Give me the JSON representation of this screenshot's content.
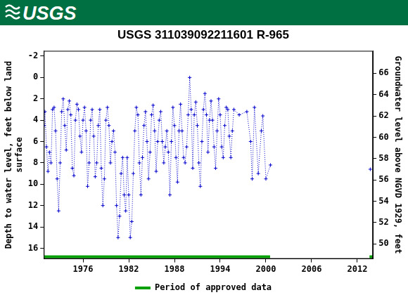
{
  "header": {
    "text": "USGS",
    "color": "#006f41"
  },
  "chart_data": {
    "type": "line",
    "title": "USGS 311039092211601 R-965",
    "ylabel": [
      "Depth to water level, feet below land",
      "surface"
    ],
    "y2label": "Groundwater level above NGVD 1929, feet",
    "x": [
      1970.9,
      1971.0,
      1971.2,
      1971.4,
      1971.6,
      1971.8,
      1972.0,
      1972.2,
      1972.4,
      1972.6,
      1972.8,
      1973.0,
      1973.2,
      1973.4,
      1973.6,
      1973.8,
      1974.0,
      1974.2,
      1974.4,
      1974.6,
      1974.8,
      1975.0,
      1975.2,
      1975.4,
      1975.6,
      1975.8,
      1976.0,
      1976.2,
      1976.4,
      1976.6,
      1976.8,
      1977.0,
      1977.2,
      1977.4,
      1977.6,
      1977.8,
      1978.0,
      1978.2,
      1978.4,
      1978.6,
      1978.8,
      1979.0,
      1979.2,
      1979.4,
      1979.6,
      1979.8,
      1980.0,
      1980.2,
      1980.4,
      1980.6,
      1980.8,
      1981.0,
      1981.2,
      1981.4,
      1981.6,
      1981.8,
      1982.0,
      1982.2,
      1982.4,
      1982.6,
      1982.8,
      1983.0,
      1983.2,
      1983.4,
      1983.6,
      1983.8,
      1984.0,
      1984.2,
      1984.4,
      1984.6,
      1984.8,
      1985.0,
      1985.2,
      1985.4,
      1985.6,
      1985.8,
      1986.0,
      1986.2,
      1986.4,
      1986.6,
      1986.8,
      1987.0,
      1987.2,
      1987.4,
      1987.6,
      1987.8,
      1988.0,
      1988.2,
      1988.4,
      1988.6,
      1988.8,
      1989.0,
      1989.2,
      1989.4,
      1989.6,
      1989.8,
      1990.0,
      1990.2,
      1990.4,
      1990.6,
      1990.8,
      1991.0,
      1991.2,
      1991.4,
      1991.6,
      1991.8,
      1992.0,
      1992.2,
      1992.4,
      1992.6,
      1992.8,
      1993.0,
      1993.2,
      1993.4,
      1993.6,
      1993.8,
      1994.0,
      1994.2,
      1994.4,
      1994.6,
      1994.8,
      1995.0,
      1995.2,
      1995.4,
      1995.6,
      1995.8,
      1996.5,
      1997.5,
      1998.0,
      1998.2,
      1998.5,
      1999.0,
      1999.4,
      1999.6,
      2000.0,
      2000.6,
      2007.0,
      2013.7
    ],
    "values": [
      4.5,
      3.2,
      6.5,
      8.8,
      7.0,
      8.0,
      3.0,
      2.8,
      5.0,
      9.5,
      12.5,
      8.0,
      3.2,
      2.0,
      4.5,
      6.8,
      3.0,
      2.2,
      3.5,
      8.5,
      9.2,
      4.0,
      2.5,
      3.0,
      5.5,
      7.0,
      4.0,
      2.8,
      5.0,
      10.2,
      8.0,
      4.0,
      3.0,
      5.5,
      9.3,
      8.0,
      4.5,
      3.0,
      8.5,
      12.0,
      9.5,
      4.0,
      2.8,
      4.5,
      8.0,
      6.0,
      5.0,
      7.0,
      12.0,
      15.0,
      13.0,
      9.0,
      7.5,
      11.0,
      12.5,
      7.5,
      11.0,
      15.0,
      13.5,
      9.0,
      5.0,
      2.8,
      3.5,
      8.0,
      11.0,
      7.5,
      4.5,
      3.2,
      6.0,
      9.5,
      7.0,
      3.5,
      2.6,
      5.0,
      8.8,
      6.0,
      4.0,
      3.2,
      6.0,
      8.0,
      6.5,
      5.0,
      7.0,
      11.0,
      6.0,
      2.8,
      4.5,
      7.5,
      9.8,
      5.0,
      2.5,
      5.0,
      7.5,
      8.0,
      6.5,
      3.5,
      0.0,
      3.0,
      8.5,
      3.5,
      2.3,
      4.5,
      8.0,
      10.2,
      6.0,
      3.0,
      1.5,
      3.5,
      7.0,
      4.0,
      2.2,
      4.0,
      6.5,
      8.5,
      5.0,
      2.0,
      3.5,
      6.5,
      7.5,
      4.5,
      2.8,
      3.0,
      5.5,
      7.5,
      5.0,
      3.0,
      3.5,
      3.2,
      6.0,
      9.5,
      2.8,
      9.0,
      5.0,
      3.6,
      9.5,
      8.2,
      null,
      8.6
    ],
    "color": "#0000cc",
    "marker": "cross",
    "line_style": "dotted",
    "xlim": [
      1970.85,
      2014.05
    ],
    "xticks": [
      1976,
      1982,
      1988,
      1994,
      2000,
      2006,
      2012
    ],
    "ylim": [
      -2.5,
      17
    ],
    "yticks": [
      -2,
      0,
      2,
      4,
      6,
      8,
      10,
      12,
      14,
      16
    ],
    "y2lim": [
      48.6,
      68.1
    ],
    "y2ticks": [
      50,
      52,
      54,
      56,
      58,
      60,
      62,
      64,
      66
    ],
    "grid": false,
    "legend": "bottom",
    "approved_periods": {
      "label": "Period of approved data",
      "color": "#00a000",
      "ranges": [
        [
          1970.85,
          2000.55
        ],
        [
          2013.6,
          2014.05
        ]
      ]
    }
  }
}
